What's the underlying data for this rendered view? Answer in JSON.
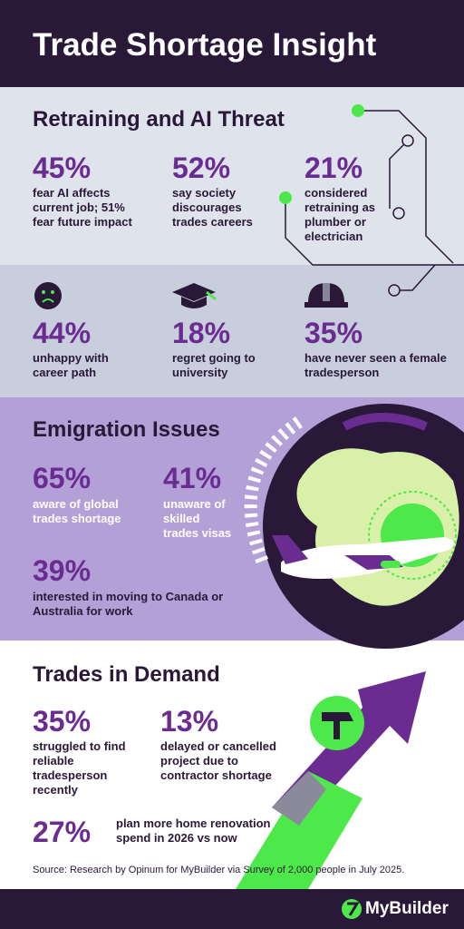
{
  "header": {
    "title": "Trade Shortage Insight"
  },
  "sections": [
    {
      "heading": "Retraining and AI Threat",
      "stats": [
        {
          "value": "45%",
          "text": "fear AI affects current job; 51% fear future impact"
        },
        {
          "value": "52%",
          "text": "say society discourages trades careers"
        },
        {
          "value": "21%",
          "text": "considered retraining as plumber or electrician"
        }
      ]
    },
    {
      "stats": [
        {
          "value": "44%",
          "text": "unhappy with career path"
        },
        {
          "value": "18%",
          "text": "regret going to university"
        },
        {
          "value": "35%",
          "text": "have never seen a female tradesperson"
        }
      ]
    },
    {
      "heading": "Emigration Issues",
      "stats": [
        {
          "value": "65%",
          "text": "aware of global trades shortage"
        },
        {
          "value": "41%",
          "text": "unaware of skilled trades visas"
        },
        {
          "value": "39%",
          "text": "interested in moving to Canada or Australia for work"
        }
      ]
    },
    {
      "heading": "Trades in Demand",
      "stats": [
        {
          "value": "35%",
          "text": "struggled to find reliable tradesperson recently"
        },
        {
          "value": "13%",
          "text": "delayed or cancelled project due to contractor shortage"
        },
        {
          "value": "27%",
          "text": "plan more home renovation spend in 2026 vs now"
        }
      ]
    }
  ],
  "source": "Source: Research by Opinum for MyBuilder via Survey of 2,000 people in July 2025.",
  "footer": {
    "logo": "MyBuilder"
  }
}
